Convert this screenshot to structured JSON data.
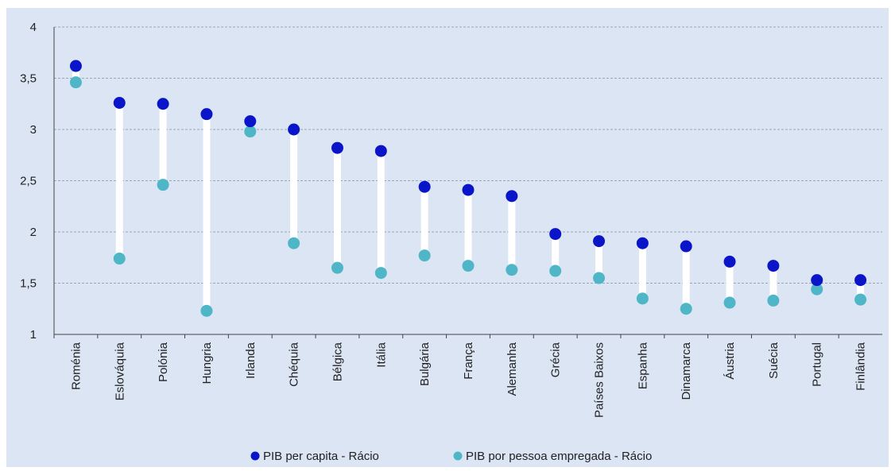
{
  "colors": {
    "background": "#dbe5f3",
    "grid": "#9aa6b4",
    "stem": "#ffffff",
    "per_capita": "#0a14c8",
    "per_employed": "#4fb6c8"
  },
  "chart_data": {
    "type": "dot-range",
    "title": "",
    "xlabel": "",
    "ylabel": "",
    "ylim": [
      1,
      4
    ],
    "yticks": [
      "1",
      "1,5",
      "2",
      "2,5",
      "3",
      "3,5",
      "4"
    ],
    "ytick_values": [
      1,
      1.5,
      2,
      2.5,
      3,
      3.5,
      4
    ],
    "grid": true,
    "legend_position": "bottom",
    "categories": [
      "Roménia",
      "Eslováquia",
      "Polónia",
      "Hungria",
      "Irlanda",
      "Chéquia",
      "Bélgica",
      "Itália",
      "Bulgária",
      "França",
      "Alemanha",
      "Grécia",
      "Países Baixos",
      "Espanha",
      "Dinamarca",
      "Áustria",
      "Suécia",
      "Portugal",
      "Finlândia"
    ],
    "series": [
      {
        "name": "PIB per capita - Rácio",
        "values": [
          3.62,
          3.26,
          3.25,
          3.15,
          3.08,
          3.0,
          2.82,
          2.79,
          2.44,
          2.41,
          2.35,
          1.98,
          1.91,
          1.89,
          1.86,
          1.71,
          1.67,
          1.53,
          1.53
        ]
      },
      {
        "name": "PIB por pessoa empregada - Rácio",
        "values": [
          3.46,
          1.74,
          2.46,
          1.23,
          2.98,
          1.89,
          1.65,
          1.6,
          1.77,
          1.67,
          1.63,
          1.62,
          1.55,
          1.35,
          1.25,
          1.31,
          1.33,
          1.44,
          1.34
        ]
      }
    ]
  }
}
